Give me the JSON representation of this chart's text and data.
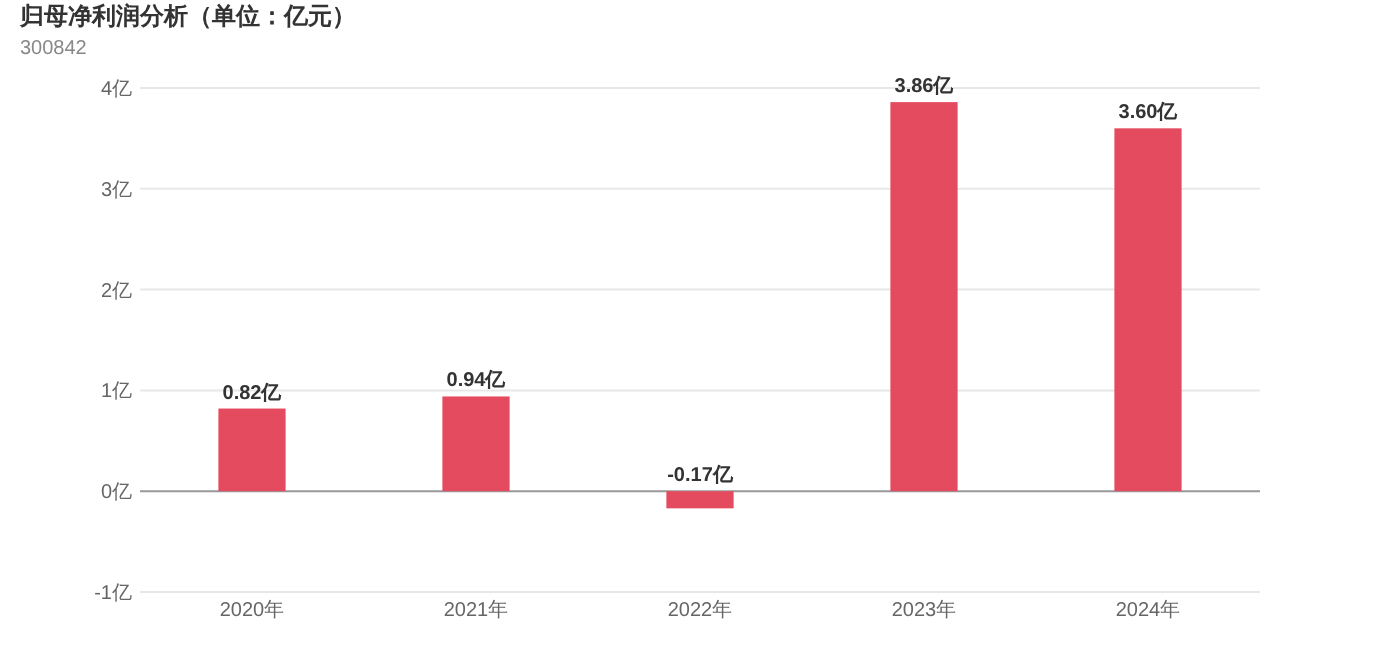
{
  "chart_data": {
    "type": "bar",
    "title": "归母净利润分析（单位：亿元）",
    "subtitle": "300842",
    "categories": [
      "2020年",
      "2021年",
      "2022年",
      "2023年",
      "2024年"
    ],
    "values": [
      0.82,
      0.94,
      -0.17,
      3.86,
      3.6
    ],
    "color": "#e54b5f",
    "value_labels": [
      "0.82亿",
      "0.94亿",
      "-0.17亿",
      "3.86亿",
      "3.60亿"
    ],
    "ylim": [
      -1,
      4
    ],
    "yticks": [
      {
        "value": -1,
        "label": "-1亿"
      },
      {
        "value": 0,
        "label": "0亿"
      },
      {
        "value": 1,
        "label": "1亿"
      },
      {
        "value": 2,
        "label": "2亿"
      },
      {
        "value": 3,
        "label": "3亿"
      },
      {
        "value": 4,
        "label": "4亿"
      }
    ],
    "grid": "y"
  }
}
